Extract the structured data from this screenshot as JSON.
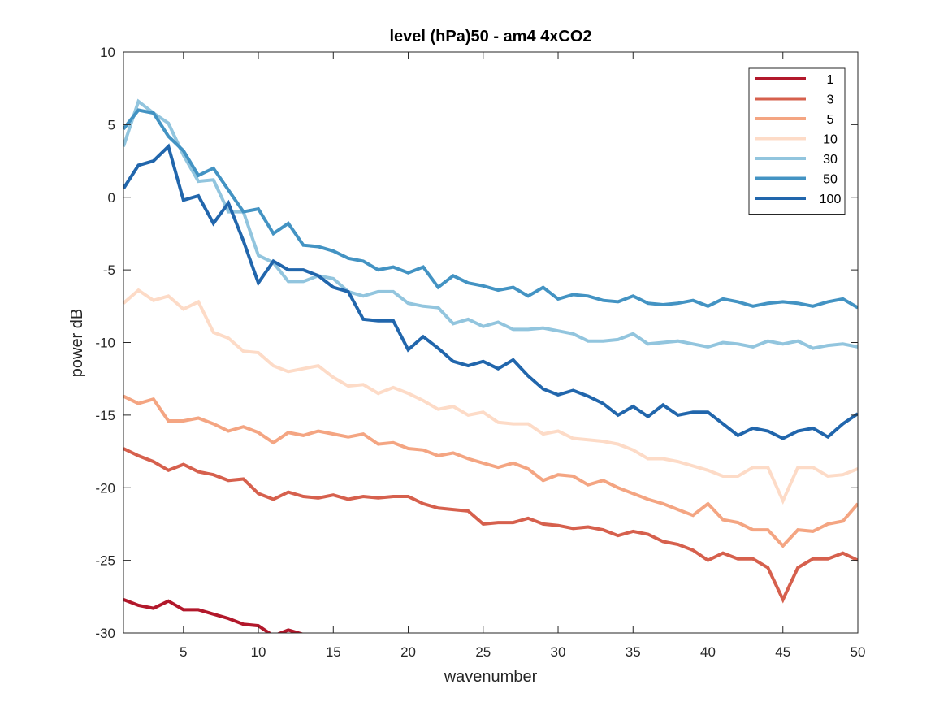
{
  "chart_data": {
    "type": "line",
    "title": "level (hPa)50 - am4 4xCO2",
    "xlabel": "wavenumber",
    "ylabel": "power dB",
    "xlim": [
      1,
      50
    ],
    "ylim": [
      -30,
      10
    ],
    "x_ticks": [
      5,
      10,
      15,
      20,
      25,
      30,
      35,
      40,
      45,
      50
    ],
    "y_ticks": [
      -30,
      -25,
      -20,
      -15,
      -10,
      -5,
      0,
      5,
      10
    ],
    "grid": false,
    "legend_position": "top-right",
    "series": [
      {
        "name": "1",
        "color": "#b2182b",
        "x": [
          1,
          2,
          3,
          4,
          5,
          6,
          7,
          8,
          9,
          10,
          11,
          12,
          13
        ],
        "values": [
          -27.7,
          -28.1,
          -28.3,
          -27.8,
          -28.4,
          -28.4,
          -28.7,
          -29.0,
          -29.4,
          -29.5,
          -30.2,
          -29.8,
          -30.1
        ]
      },
      {
        "name": "3",
        "color": "#d6604d",
        "x": [
          1,
          2,
          3,
          4,
          5,
          6,
          7,
          8,
          9,
          10,
          11,
          12,
          13,
          14,
          15,
          16,
          17,
          18,
          19,
          20,
          21,
          22,
          23,
          24,
          25,
          26,
          27,
          28,
          29,
          30,
          31,
          32,
          33,
          34,
          35,
          36,
          37,
          38,
          39,
          40,
          41,
          42,
          43,
          44,
          45,
          46,
          47,
          48,
          49,
          50
        ],
        "values": [
          -17.3,
          -17.8,
          -18.2,
          -18.8,
          -18.4,
          -18.9,
          -19.1,
          -19.5,
          -19.4,
          -20.4,
          -20.8,
          -20.3,
          -20.6,
          -20.7,
          -20.5,
          -20.8,
          -20.6,
          -20.7,
          -20.6,
          -20.6,
          -21.1,
          -21.4,
          -21.5,
          -21.6,
          -22.5,
          -22.4,
          -22.4,
          -22.1,
          -22.5,
          -22.6,
          -22.8,
          -22.7,
          -22.9,
          -23.3,
          -23.0,
          -23.2,
          -23.7,
          -23.9,
          -24.3,
          -25.0,
          -24.5,
          -24.9,
          -24.9,
          -25.5,
          -27.7,
          -25.5,
          -24.9,
          -24.9,
          -24.5,
          -25.0
        ]
      },
      {
        "name": "5",
        "color": "#f4a582",
        "x": [
          1,
          2,
          3,
          4,
          5,
          6,
          7,
          8,
          9,
          10,
          11,
          12,
          13,
          14,
          15,
          16,
          17,
          18,
          19,
          20,
          21,
          22,
          23,
          24,
          25,
          26,
          27,
          28,
          29,
          30,
          31,
          32,
          33,
          34,
          35,
          36,
          37,
          38,
          39,
          40,
          41,
          42,
          43,
          44,
          45,
          46,
          47,
          48,
          49,
          50
        ],
        "values": [
          -13.7,
          -14.2,
          -13.9,
          -15.4,
          -15.4,
          -15.2,
          -15.6,
          -16.1,
          -15.8,
          -16.2,
          -16.9,
          -16.2,
          -16.4,
          -16.1,
          -16.3,
          -16.5,
          -16.3,
          -17.0,
          -16.9,
          -17.3,
          -17.4,
          -17.8,
          -17.6,
          -18.0,
          -18.3,
          -18.6,
          -18.3,
          -18.7,
          -19.5,
          -19.1,
          -19.2,
          -19.8,
          -19.5,
          -20.0,
          -20.4,
          -20.8,
          -21.1,
          -21.5,
          -21.9,
          -21.1,
          -22.2,
          -22.4,
          -22.9,
          -22.9,
          -24.0,
          -22.9,
          -23.0,
          -22.5,
          -22.3,
          -21.1
        ]
      },
      {
        "name": "10",
        "color": "#fddbc7",
        "x": [
          1,
          2,
          3,
          4,
          5,
          6,
          7,
          8,
          9,
          10,
          11,
          12,
          13,
          14,
          15,
          16,
          17,
          18,
          19,
          20,
          21,
          22,
          23,
          24,
          25,
          26,
          27,
          28,
          29,
          30,
          31,
          32,
          33,
          34,
          35,
          36,
          37,
          38,
          39,
          40,
          41,
          42,
          43,
          44,
          45,
          46,
          47,
          48,
          49,
          50
        ],
        "values": [
          -7.3,
          -6.4,
          -7.1,
          -6.8,
          -7.7,
          -7.2,
          -9.3,
          -9.7,
          -10.6,
          -10.7,
          -11.6,
          -12.0,
          -11.8,
          -11.6,
          -12.4,
          -13.0,
          -12.9,
          -13.5,
          -13.1,
          -13.5,
          -14.0,
          -14.6,
          -14.4,
          -15.0,
          -14.8,
          -15.5,
          -15.6,
          -15.6,
          -16.3,
          -16.1,
          -16.6,
          -16.7,
          -16.8,
          -17.0,
          -17.4,
          -18.0,
          -18.0,
          -18.2,
          -18.5,
          -18.8,
          -19.2,
          -19.2,
          -18.6,
          -18.6,
          -20.9,
          -18.6,
          -18.6,
          -19.2,
          -19.1,
          -18.7
        ]
      },
      {
        "name": "30",
        "color": "#92c5de",
        "x": [
          1,
          2,
          3,
          4,
          5,
          6,
          7,
          8,
          9,
          10,
          11,
          12,
          13,
          14,
          15,
          16,
          17,
          18,
          19,
          20,
          21,
          22,
          23,
          24,
          25,
          26,
          27,
          28,
          29,
          30,
          31,
          32,
          33,
          34,
          35,
          36,
          37,
          38,
          39,
          40,
          41,
          42,
          43,
          44,
          45,
          46,
          47,
          48,
          49,
          50
        ],
        "values": [
          3.5,
          6.6,
          5.8,
          5.1,
          2.9,
          1.1,
          1.2,
          -1.0,
          -1.0,
          -4.0,
          -4.5,
          -5.8,
          -5.8,
          -5.4,
          -5.6,
          -6.5,
          -6.8,
          -6.5,
          -6.5,
          -7.3,
          -7.5,
          -7.6,
          -8.7,
          -8.4,
          -8.9,
          -8.6,
          -9.1,
          -9.1,
          -9.0,
          -9.2,
          -9.4,
          -9.9,
          -9.9,
          -9.8,
          -9.4,
          -10.1,
          -10.0,
          -9.9,
          -10.1,
          -10.3,
          -10.0,
          -10.1,
          -10.3,
          -9.9,
          -10.1,
          -9.9,
          -10.4,
          -10.2,
          -10.1,
          -10.3
        ]
      },
      {
        "name": "50",
        "color": "#4393c3",
        "x": [
          1,
          2,
          3,
          4,
          5,
          6,
          7,
          8,
          9,
          10,
          11,
          12,
          13,
          14,
          15,
          16,
          17,
          18,
          19,
          20,
          21,
          22,
          23,
          24,
          25,
          26,
          27,
          28,
          29,
          30,
          31,
          32,
          33,
          34,
          35,
          36,
          37,
          38,
          39,
          40,
          41,
          42,
          43,
          44,
          45,
          46,
          47,
          48,
          49,
          50
        ],
        "values": [
          4.7,
          6.0,
          5.8,
          4.2,
          3.2,
          1.5,
          2.0,
          0.5,
          -1.0,
          -0.8,
          -2.5,
          -1.8,
          -3.3,
          -3.4,
          -3.7,
          -4.2,
          -4.4,
          -5.0,
          -4.8,
          -5.2,
          -4.8,
          -6.2,
          -5.4,
          -5.9,
          -6.1,
          -6.4,
          -6.2,
          -6.8,
          -6.2,
          -7.0,
          -6.7,
          -6.8,
          -7.1,
          -7.2,
          -6.8,
          -7.3,
          -7.4,
          -7.3,
          -7.1,
          -7.5,
          -7.0,
          -7.2,
          -7.5,
          -7.3,
          -7.2,
          -7.3,
          -7.5,
          -7.2,
          -7.0,
          -7.6
        ]
      },
      {
        "name": "100",
        "color": "#2166ac",
        "x": [
          1,
          2,
          3,
          4,
          5,
          6,
          7,
          8,
          9,
          10,
          11,
          12,
          13,
          14,
          15,
          16,
          17,
          18,
          19,
          20,
          21,
          22,
          23,
          24,
          25,
          26,
          27,
          28,
          29,
          30,
          31,
          32,
          33,
          34,
          35,
          36,
          37,
          38,
          39,
          40,
          41,
          42,
          43,
          44,
          45,
          46,
          47,
          48,
          49,
          50
        ],
        "values": [
          0.6,
          2.2,
          2.5,
          3.5,
          -0.2,
          0.1,
          -1.8,
          -0.4,
          -3.0,
          -5.9,
          -4.4,
          -5.0,
          -5.0,
          -5.4,
          -6.2,
          -6.5,
          -8.4,
          -8.5,
          -8.5,
          -10.5,
          -9.6,
          -10.4,
          -11.3,
          -11.6,
          -11.3,
          -11.8,
          -11.2,
          -12.3,
          -13.2,
          -13.6,
          -13.3,
          -13.7,
          -14.2,
          -15.0,
          -14.4,
          -15.1,
          -14.3,
          -15.0,
          -14.8,
          -14.8,
          -15.6,
          -16.4,
          -15.9,
          -16.1,
          -16.6,
          -16.1,
          -15.9,
          -16.5,
          -15.6,
          -14.9
        ]
      }
    ]
  }
}
